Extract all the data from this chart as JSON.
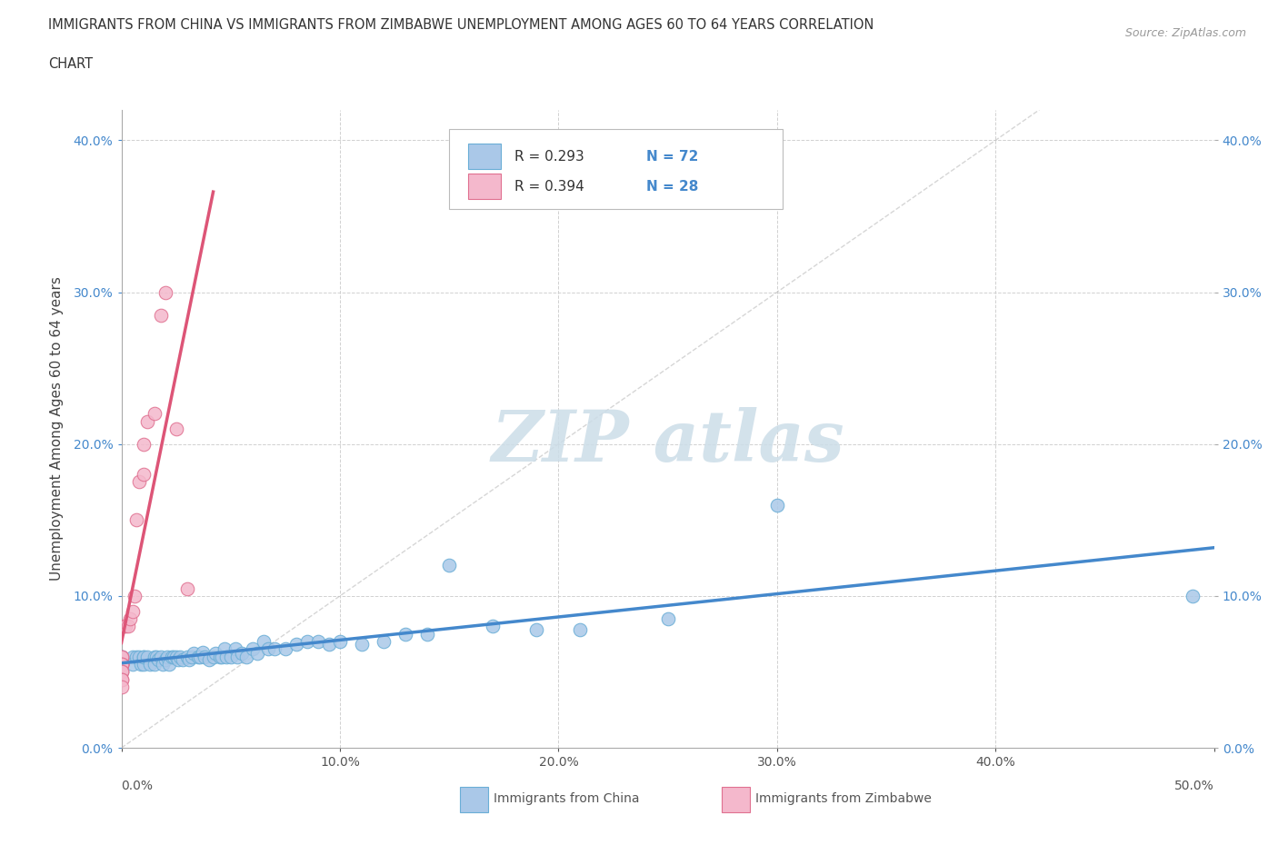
{
  "title_line1": "IMMIGRANTS FROM CHINA VS IMMIGRANTS FROM ZIMBABWE UNEMPLOYMENT AMONG AGES 60 TO 64 YEARS CORRELATION",
  "title_line2": "CHART",
  "source_text": "Source: ZipAtlas.com",
  "ylabel": "Unemployment Among Ages 60 to 64 years",
  "xlim": [
    0.0,
    0.5
  ],
  "ylim": [
    0.0,
    0.42
  ],
  "x_ticks": [
    0.0,
    0.1,
    0.2,
    0.3,
    0.4,
    0.5
  ],
  "x_tick_labels_inner": [
    "",
    "10.0%",
    "20.0%",
    "30.0%",
    "40.0%",
    ""
  ],
  "x_tick_labels_outer_left": "0.0%",
  "x_tick_labels_outer_right": "50.0%",
  "y_ticks": [
    0.0,
    0.1,
    0.2,
    0.3,
    0.4
  ],
  "y_tick_labels": [
    "0.0%",
    "10.0%",
    "20.0%",
    "30.0%",
    "40.0%"
  ],
  "china_fill": "#aac8e8",
  "china_edge": "#6aaed6",
  "zimbabwe_fill": "#f4b8cc",
  "zimbabwe_edge": "#e07090",
  "trend_china": "#4488cc",
  "trend_zimbabwe": "#dd5577",
  "diag_line_color": "#bbbbbb",
  "watermark_color": "#ccdde8",
  "r_china": "0.293",
  "n_china": "72",
  "r_zimbabwe": "0.394",
  "n_zimbabwe": "28",
  "legend_china_label": "Immigrants from China",
  "legend_zimbabwe_label": "Immigrants from Zimbabwe",
  "background_color": "#ffffff",
  "grid_color": "#cccccc",
  "tick_color": "#4488cc",
  "china_x": [
    0.0,
    0.0,
    0.0,
    0.0,
    0.0,
    0.005,
    0.005,
    0.007,
    0.008,
    0.009,
    0.01,
    0.01,
    0.01,
    0.012,
    0.013,
    0.015,
    0.015,
    0.016,
    0.017,
    0.018,
    0.019,
    0.02,
    0.021,
    0.022,
    0.023,
    0.024,
    0.025,
    0.026,
    0.027,
    0.028,
    0.03,
    0.031,
    0.032,
    0.033,
    0.035,
    0.036,
    0.037,
    0.038,
    0.04,
    0.042,
    0.043,
    0.045,
    0.046,
    0.047,
    0.048,
    0.05,
    0.052,
    0.053,
    0.055,
    0.057,
    0.06,
    0.062,
    0.065,
    0.067,
    0.07,
    0.075,
    0.08,
    0.085,
    0.09,
    0.095,
    0.1,
    0.11,
    0.12,
    0.13,
    0.14,
    0.15,
    0.17,
    0.19,
    0.21,
    0.25,
    0.3,
    0.49
  ],
  "china_y": [
    0.06,
    0.06,
    0.055,
    0.055,
    0.05,
    0.06,
    0.055,
    0.06,
    0.06,
    0.055,
    0.06,
    0.055,
    0.06,
    0.06,
    0.055,
    0.06,
    0.055,
    0.06,
    0.058,
    0.06,
    0.055,
    0.058,
    0.06,
    0.055,
    0.06,
    0.06,
    0.06,
    0.058,
    0.06,
    0.058,
    0.06,
    0.058,
    0.06,
    0.062,
    0.06,
    0.06,
    0.063,
    0.06,
    0.058,
    0.06,
    0.062,
    0.06,
    0.06,
    0.065,
    0.06,
    0.06,
    0.065,
    0.06,
    0.062,
    0.06,
    0.065,
    0.062,
    0.07,
    0.065,
    0.065,
    0.065,
    0.068,
    0.07,
    0.07,
    0.068,
    0.07,
    0.068,
    0.07,
    0.075,
    0.075,
    0.12,
    0.08,
    0.078,
    0.078,
    0.085,
    0.16,
    0.1
  ],
  "zimbabwe_x": [
    0.0,
    0.0,
    0.0,
    0.0,
    0.0,
    0.0,
    0.0,
    0.0,
    0.0,
    0.0,
    0.0,
    0.0,
    0.001,
    0.002,
    0.003,
    0.004,
    0.005,
    0.006,
    0.007,
    0.008,
    0.01,
    0.01,
    0.012,
    0.015,
    0.018,
    0.02,
    0.025,
    0.03
  ],
  "zimbabwe_y": [
    0.055,
    0.055,
    0.055,
    0.06,
    0.06,
    0.055,
    0.055,
    0.05,
    0.05,
    0.045,
    0.045,
    0.04,
    0.08,
    0.08,
    0.08,
    0.085,
    0.09,
    0.1,
    0.15,
    0.175,
    0.18,
    0.2,
    0.215,
    0.22,
    0.285,
    0.3,
    0.21,
    0.105
  ]
}
